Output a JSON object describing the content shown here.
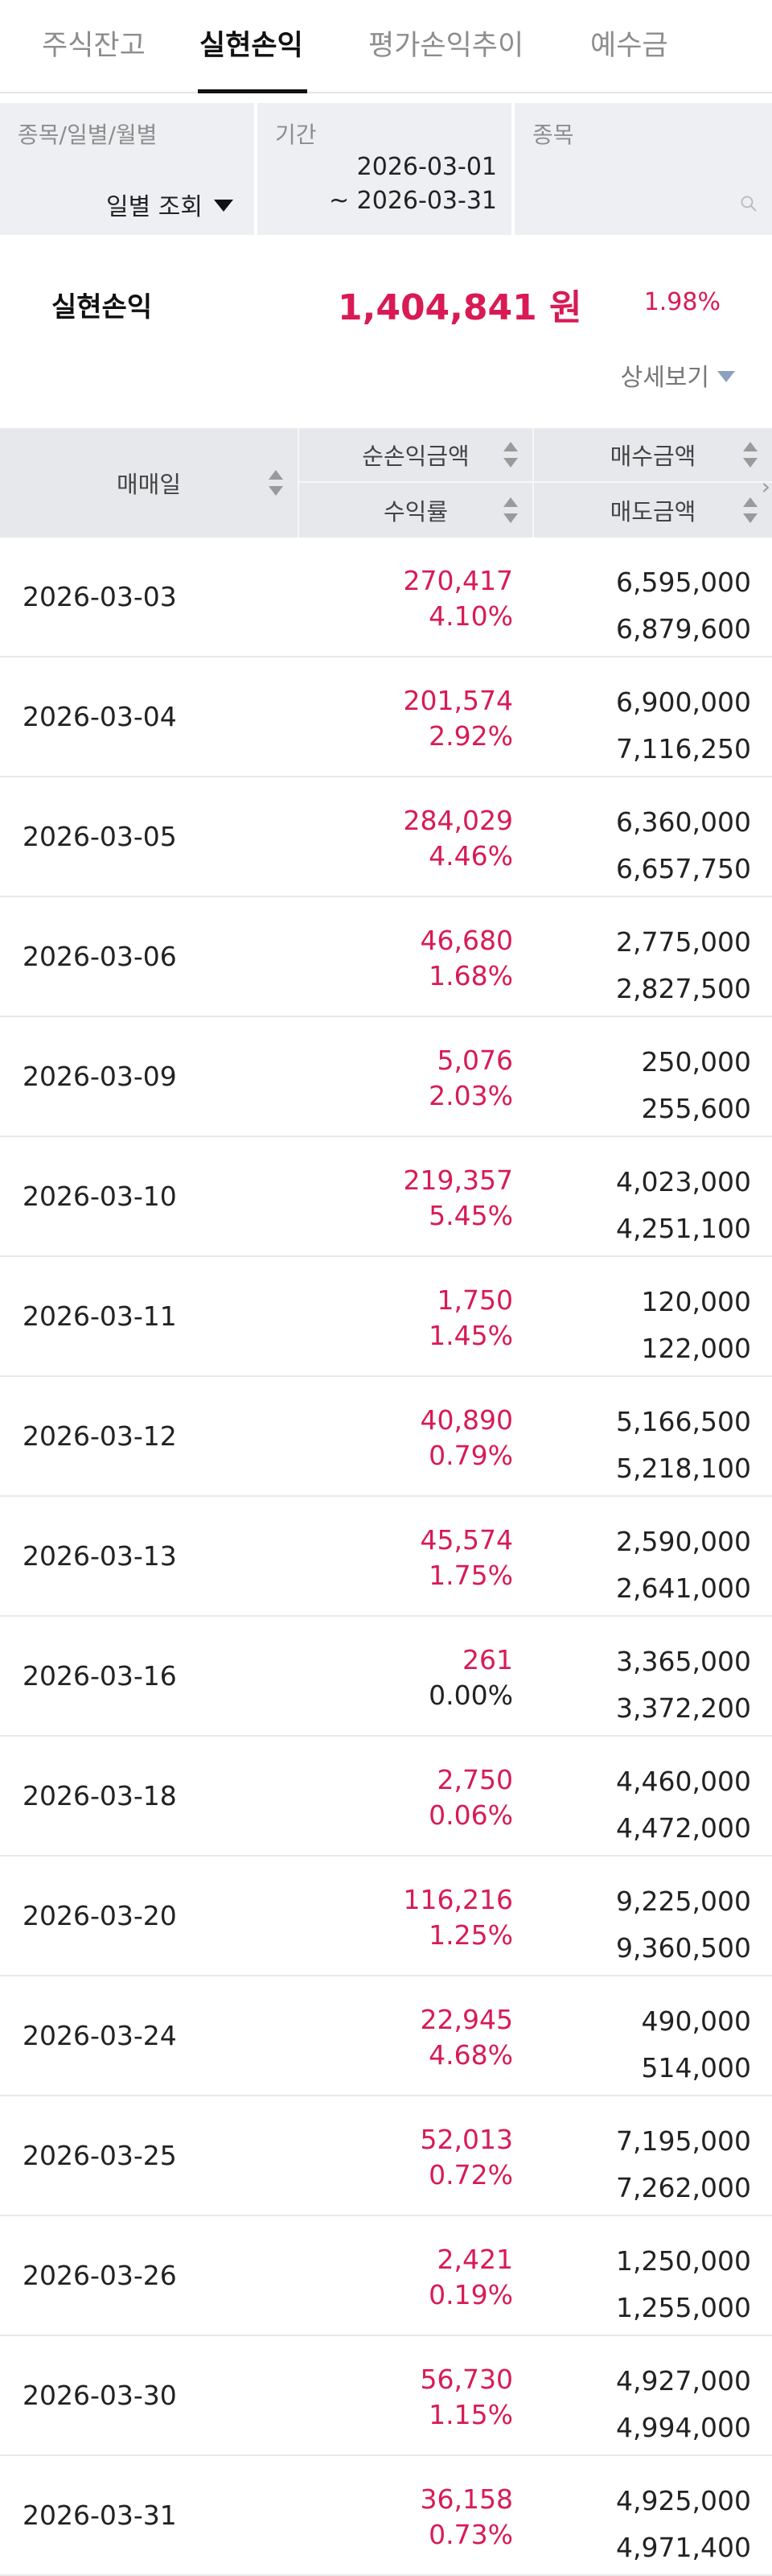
{
  "tabs": [
    {
      "label": "주식잔고",
      "active": false
    },
    {
      "label": "실현손익",
      "active": true
    },
    {
      "label": "평가손익추이",
      "active": false
    },
    {
      "label": "예수금",
      "active": false
    }
  ],
  "filters": {
    "type_label": "종목/일별/월별",
    "type_value": "일별 조회",
    "period_label": "기간",
    "period_start": "2026-03-01",
    "period_end": "~ 2026-03-31",
    "stock_label": "종목",
    "stock_value": ""
  },
  "summary": {
    "label": "실현손익",
    "amount": "1,404,841 원",
    "rate": "1.98%",
    "detail_label": "상세보기"
  },
  "table": {
    "headers": {
      "date": "매매일",
      "net_pnl": "순손익금액",
      "return_rate": "수익률",
      "buy_amount": "매수금액",
      "sell_amount": "매도금액"
    },
    "rows": [
      {
        "date": "2026-03-03",
        "pnl": "270,417",
        "rate": "4.10%",
        "buy": "6,595,000",
        "sell": "6,879,600"
      },
      {
        "date": "2026-03-04",
        "pnl": "201,574",
        "rate": "2.92%",
        "buy": "6,900,000",
        "sell": "7,116,250"
      },
      {
        "date": "2026-03-05",
        "pnl": "284,029",
        "rate": "4.46%",
        "buy": "6,360,000",
        "sell": "6,657,750"
      },
      {
        "date": "2026-03-06",
        "pnl": "46,680",
        "rate": "1.68%",
        "buy": "2,775,000",
        "sell": "2,827,500"
      },
      {
        "date": "2026-03-09",
        "pnl": "5,076",
        "rate": "2.03%",
        "buy": "250,000",
        "sell": "255,600"
      },
      {
        "date": "2026-03-10",
        "pnl": "219,357",
        "rate": "5.45%",
        "buy": "4,023,000",
        "sell": "4,251,100"
      },
      {
        "date": "2026-03-11",
        "pnl": "1,750",
        "rate": "1.45%",
        "buy": "120,000",
        "sell": "122,000"
      },
      {
        "date": "2026-03-12",
        "pnl": "40,890",
        "rate": "0.79%",
        "buy": "5,166,500",
        "sell": "5,218,100"
      },
      {
        "date": "2026-03-13",
        "pnl": "45,574",
        "rate": "1.75%",
        "buy": "2,590,000",
        "sell": "2,641,000"
      },
      {
        "date": "2026-03-16",
        "pnl": "261",
        "rate": "0.00%",
        "buy": "3,365,000",
        "sell": "3,372,200"
      },
      {
        "date": "2026-03-18",
        "pnl": "2,750",
        "rate": "0.06%",
        "buy": "4,460,000",
        "sell": "4,472,000"
      },
      {
        "date": "2026-03-20",
        "pnl": "116,216",
        "rate": "1.25%",
        "buy": "9,225,000",
        "sell": "9,360,500"
      },
      {
        "date": "2026-03-24",
        "pnl": "22,945",
        "rate": "4.68%",
        "buy": "490,000",
        "sell": "514,000"
      },
      {
        "date": "2026-03-25",
        "pnl": "52,013",
        "rate": "0.72%",
        "buy": "7,195,000",
        "sell": "7,262,000"
      },
      {
        "date": "2026-03-26",
        "pnl": "2,421",
        "rate": "0.19%",
        "buy": "1,250,000",
        "sell": "1,255,000"
      },
      {
        "date": "2026-03-30",
        "pnl": "56,730",
        "rate": "1.15%",
        "buy": "4,927,000",
        "sell": "4,994,000"
      },
      {
        "date": "2026-03-31",
        "pnl": "36,158",
        "rate": "0.73%",
        "buy": "4,925,000",
        "sell": "4,971,400"
      }
    ]
  },
  "colors": {
    "profit": "#d81b55",
    "header_bg": "#e6e8eb",
    "filter_bg": "#edeff2"
  },
  "icons": [
    "caret-down-icon",
    "sort-icon",
    "search-icon",
    "chevron-right-icon"
  ]
}
